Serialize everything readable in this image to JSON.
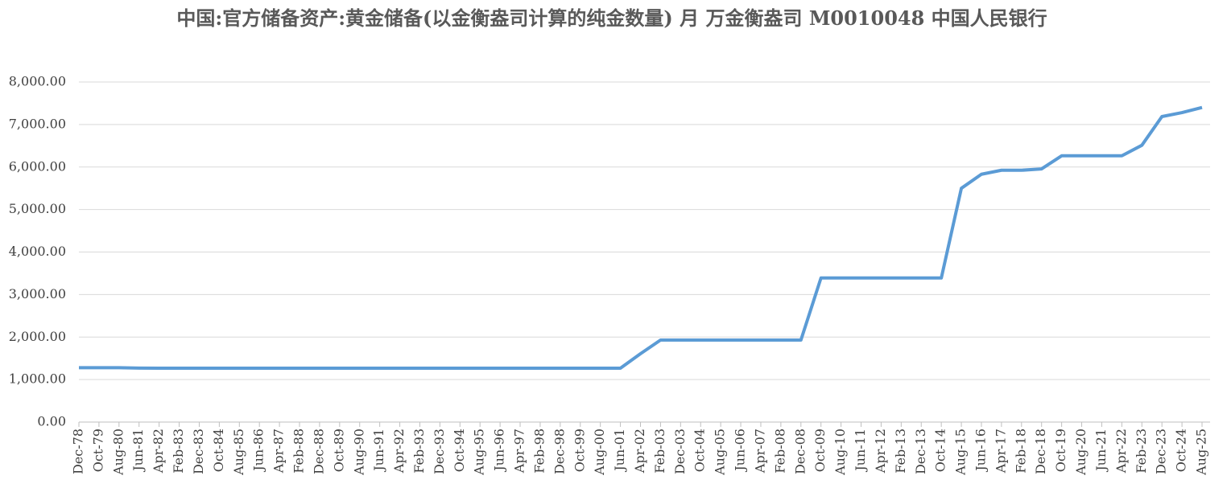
{
  "chart_data": {
    "type": "line",
    "title": "中国:官方储备资产:黄金储备(以金衡盎司计算的纯金数量) 月 万金衡盎司 M0010048 中国人民银行",
    "categories": [
      "Dec-78",
      "Oct-79",
      "Aug-80",
      "Jun-81",
      "Apr-82",
      "Feb-83",
      "Dec-83",
      "Oct-84",
      "Aug-85",
      "Jun-86",
      "Apr-87",
      "Feb-88",
      "Dec-88",
      "Oct-89",
      "Aug-90",
      "Jun-91",
      "Apr-92",
      "Feb-93",
      "Dec-93",
      "Oct-94",
      "Aug-95",
      "Jun-96",
      "Apr-97",
      "Feb-98",
      "Dec-98",
      "Oct-99",
      "Aug-00",
      "Jun-01",
      "Apr-02",
      "Feb-03",
      "Dec-03",
      "Oct-04",
      "Aug-05",
      "Jun-06",
      "Apr-07",
      "Feb-08",
      "Dec-08",
      "Oct-09",
      "Aug-10",
      "Jun-11",
      "Apr-12",
      "Feb-13",
      "Dec-13",
      "Oct-14",
      "Aug-15",
      "Jun-16",
      "Apr-17",
      "Feb-18",
      "Dec-18",
      "Oct-19",
      "Aug-20",
      "Jun-21",
      "Apr-22",
      "Feb-23",
      "Dec-23",
      "Oct-24",
      "Aug-25"
    ],
    "values": [
      1280,
      1280,
      1280,
      1270,
      1267,
      1267,
      1267,
      1267,
      1267,
      1267,
      1267,
      1267,
      1267,
      1267,
      1267,
      1267,
      1267,
      1267,
      1267,
      1267,
      1267,
      1267,
      1267,
      1267,
      1267,
      1267,
      1267,
      1267,
      1608,
      1929,
      1929,
      1929,
      1929,
      1929,
      1929,
      1929,
      1929,
      3389,
      3389,
      3389,
      3389,
      3389,
      3389,
      3389,
      5500,
      5830,
      5924,
      5924,
      5956,
      6264,
      6264,
      6264,
      6264,
      6512,
      7187,
      7280,
      7400
    ],
    "color": "#5b9bd5",
    "ylim": [
      0,
      8000
    ],
    "yticks": [
      {
        "value": 0,
        "label": "0.00"
      },
      {
        "value": 1000,
        "label": "1,000.00"
      },
      {
        "value": 2000,
        "label": "2,000.00"
      },
      {
        "value": 3000,
        "label": "3,000.00"
      },
      {
        "value": 4000,
        "label": "4,000.00"
      },
      {
        "value": 5000,
        "label": "5,000.00"
      },
      {
        "value": 6000,
        "label": "6,000.00"
      },
      {
        "value": 7000,
        "label": "7,000.00"
      },
      {
        "value": 8000,
        "label": "8,000.00"
      }
    ],
    "grid": true
  }
}
